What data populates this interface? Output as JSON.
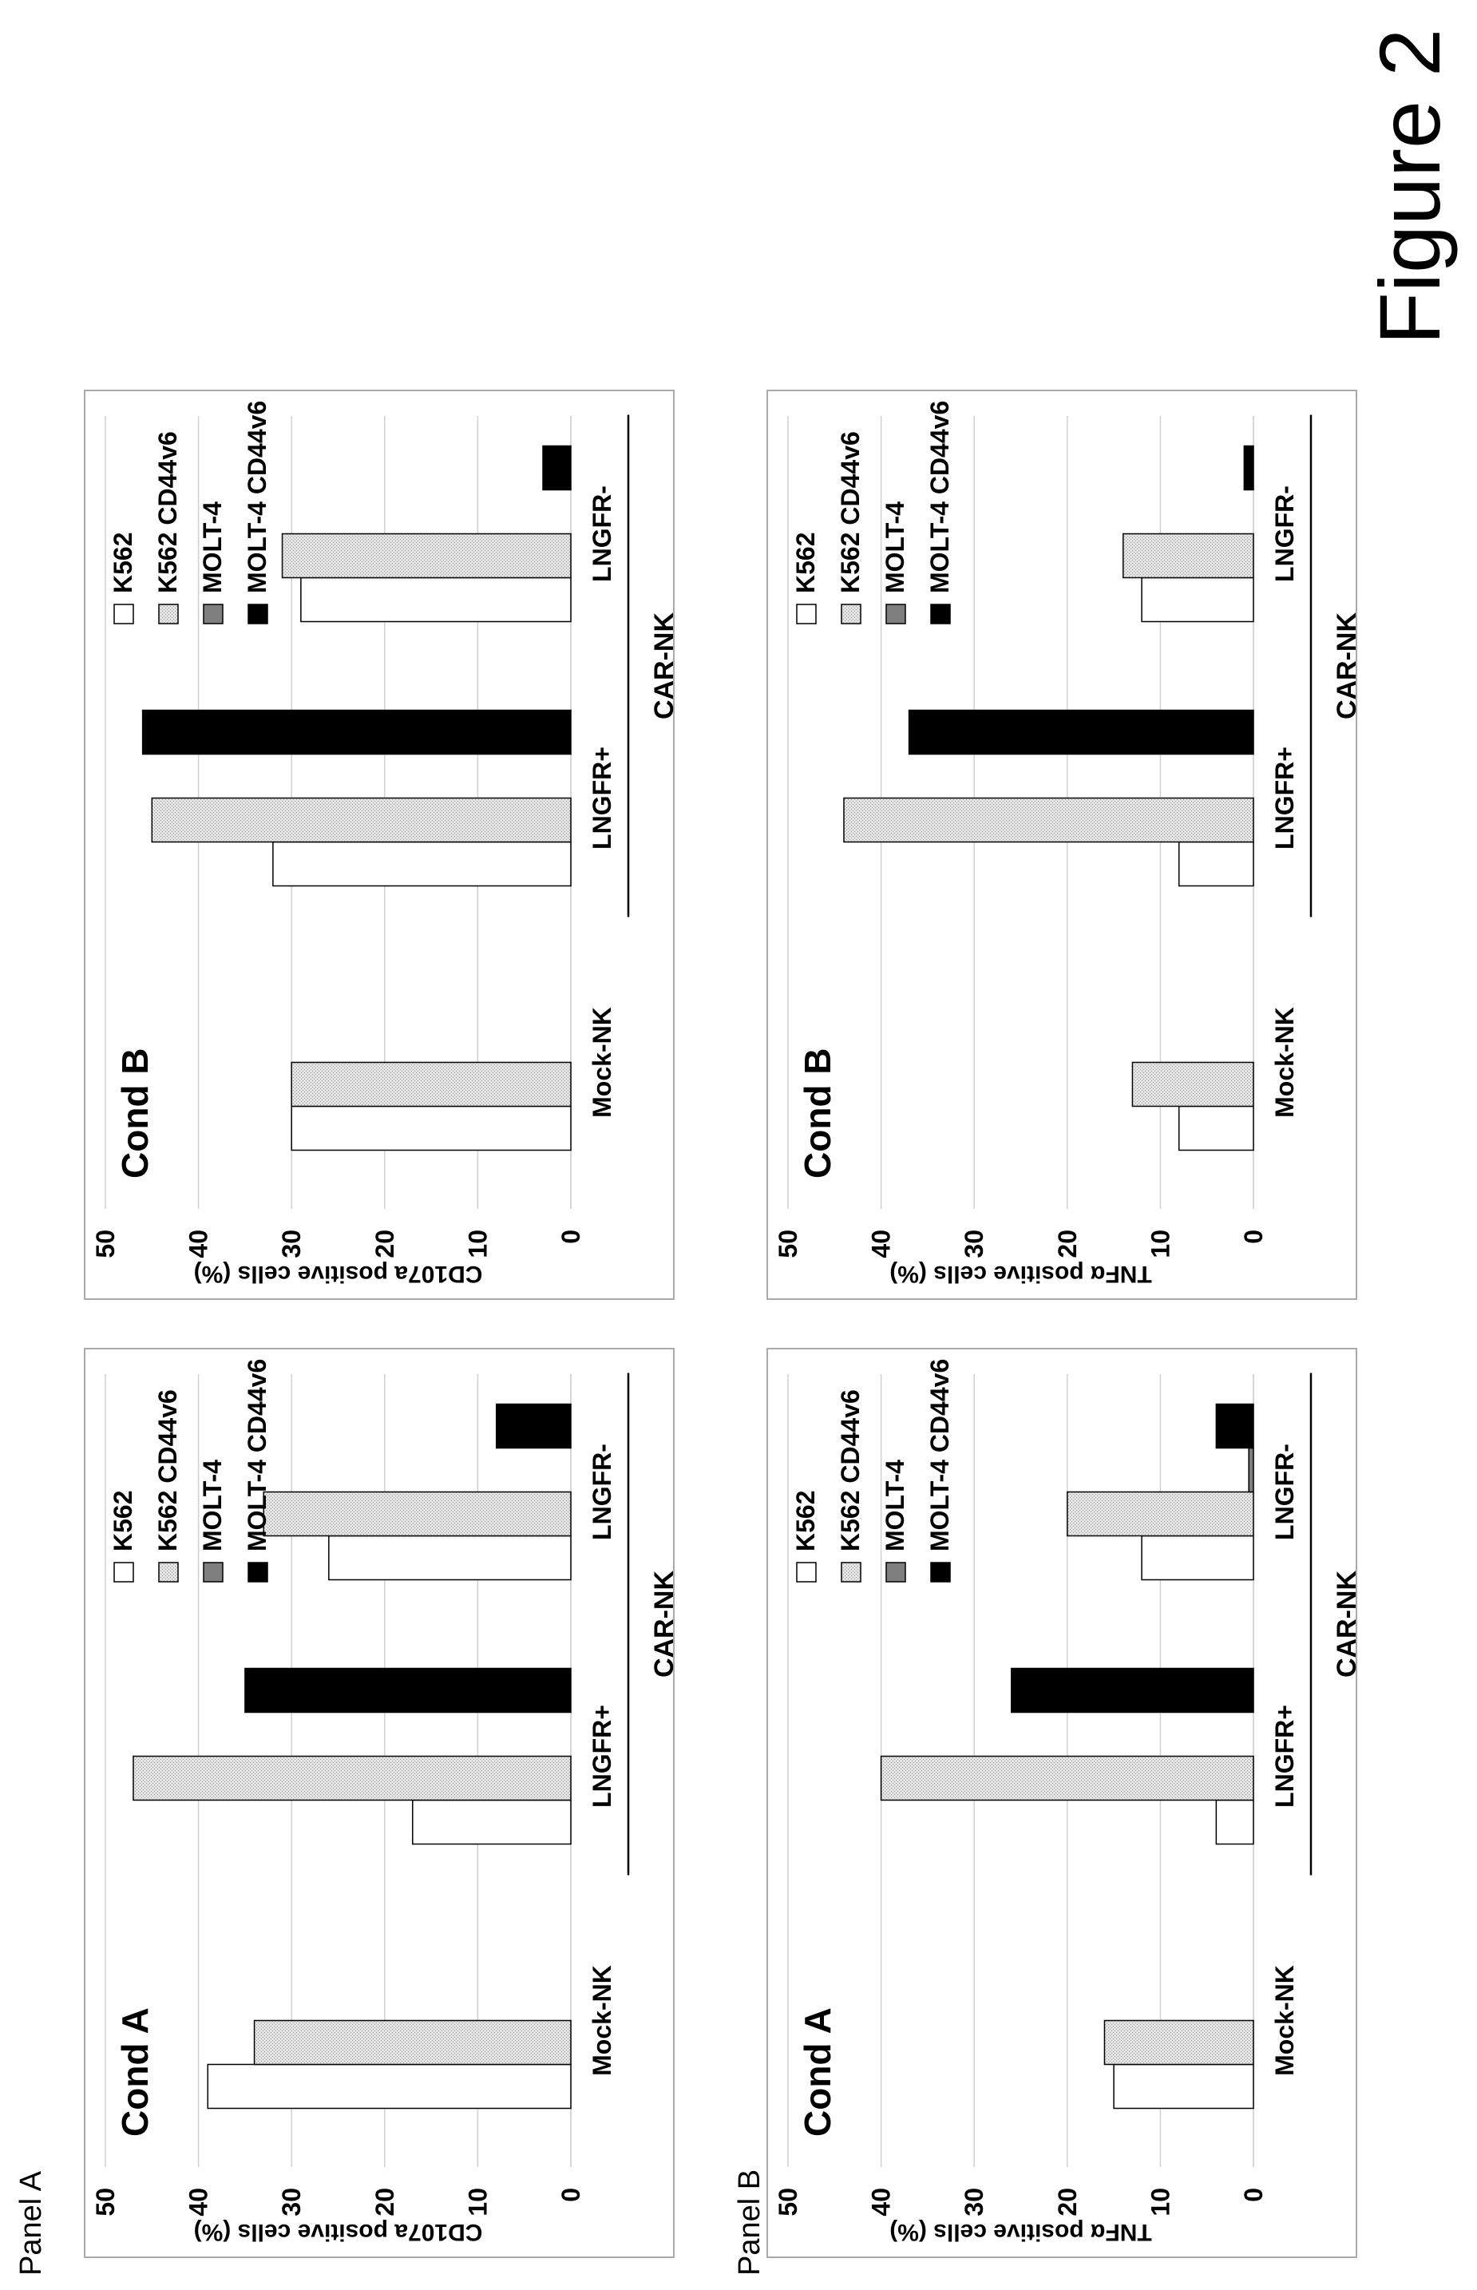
{
  "figure_label": "Figure 2",
  "panels": [
    {
      "label": "Panel A"
    },
    {
      "label": "Panel B"
    }
  ],
  "legend": [
    {
      "name": "K562",
      "color": "#ffffff"
    },
    {
      "name": "K562 CD44v6",
      "color": "#d9d9d9",
      "pattern": "stipple"
    },
    {
      "name": "MOLT-4",
      "color": "#7f7f7f"
    },
    {
      "name": "MOLT-4 CD44v6",
      "color": "#000000"
    }
  ],
  "chart_data": [
    {
      "type": "bar",
      "panel": "Panel A",
      "title": "Cond A",
      "ylabel": "CD107a positive cells (%)",
      "ylim": [
        0,
        50
      ],
      "yticks": [
        0,
        10,
        20,
        30,
        40,
        50
      ],
      "categories": [
        "Mock-NK",
        "LNGFR+",
        "LNGFR-"
      ],
      "group_label": "CAR-NK",
      "group_spans": [
        "LNGFR+",
        "LNGFR-"
      ],
      "grid": true,
      "legend_position": "top-right",
      "series": [
        {
          "name": "K562",
          "values": [
            39,
            17,
            26
          ]
        },
        {
          "name": "K562 CD44v6",
          "values": [
            34,
            47,
            33
          ]
        },
        {
          "name": "MOLT-4",
          "values": [
            0,
            0,
            0
          ]
        },
        {
          "name": "MOLT-4 CD44v6",
          "values": [
            0,
            35,
            8
          ]
        }
      ]
    },
    {
      "type": "bar",
      "panel": "Panel A",
      "title": "Cond B",
      "ylabel": "CD107a positive cells (%)",
      "ylim": [
        0,
        50
      ],
      "yticks": [
        0,
        10,
        20,
        30,
        40,
        50
      ],
      "categories": [
        "Mock-NK",
        "LNGFR+",
        "LNGFR-"
      ],
      "group_label": "CAR-NK",
      "group_spans": [
        "LNGFR+",
        "LNGFR-"
      ],
      "grid": true,
      "legend_position": "top-right",
      "series": [
        {
          "name": "K562",
          "values": [
            30,
            32,
            29
          ]
        },
        {
          "name": "K562 CD44v6",
          "values": [
            30,
            45,
            31
          ]
        },
        {
          "name": "MOLT-4",
          "values": [
            0,
            0,
            0
          ]
        },
        {
          "name": "MOLT-4 CD44v6",
          "values": [
            0,
            46,
            3
          ]
        }
      ]
    },
    {
      "type": "bar",
      "panel": "Panel B",
      "title": "Cond A",
      "ylabel": "TNFα positive cells (%)",
      "ylim": [
        0,
        50
      ],
      "yticks": [
        0,
        10,
        20,
        30,
        40,
        50
      ],
      "categories": [
        "Mock-NK",
        "LNGFR+",
        "LNGFR-"
      ],
      "group_label": "CAR-NK",
      "group_spans": [
        "LNGFR+",
        "LNGFR-"
      ],
      "grid": true,
      "legend_position": "top-right",
      "series": [
        {
          "name": "K562",
          "values": [
            15,
            4,
            12
          ]
        },
        {
          "name": "K562 CD44v6",
          "values": [
            16,
            40,
            20
          ]
        },
        {
          "name": "MOLT-4",
          "values": [
            0,
            0,
            0.5
          ]
        },
        {
          "name": "MOLT-4 CD44v6",
          "values": [
            0,
            26,
            4
          ]
        }
      ]
    },
    {
      "type": "bar",
      "panel": "Panel B",
      "title": "Cond B",
      "ylabel": "TNFα positive cells (%)",
      "ylim": [
        0,
        50
      ],
      "yticks": [
        0,
        10,
        20,
        30,
        40,
        50
      ],
      "categories": [
        "Mock-NK",
        "LNGFR+",
        "LNGFR-"
      ],
      "group_label": "CAR-NK",
      "group_spans": [
        "LNGFR+",
        "LNGFR-"
      ],
      "grid": true,
      "legend_position": "top-right",
      "series": [
        {
          "name": "K562",
          "values": [
            8,
            8,
            12
          ]
        },
        {
          "name": "K562 CD44v6",
          "values": [
            13,
            44,
            14
          ]
        },
        {
          "name": "MOLT-4",
          "values": [
            0,
            0,
            0
          ]
        },
        {
          "name": "MOLT-4 CD44v6",
          "values": [
            0,
            37,
            1
          ]
        }
      ]
    }
  ]
}
